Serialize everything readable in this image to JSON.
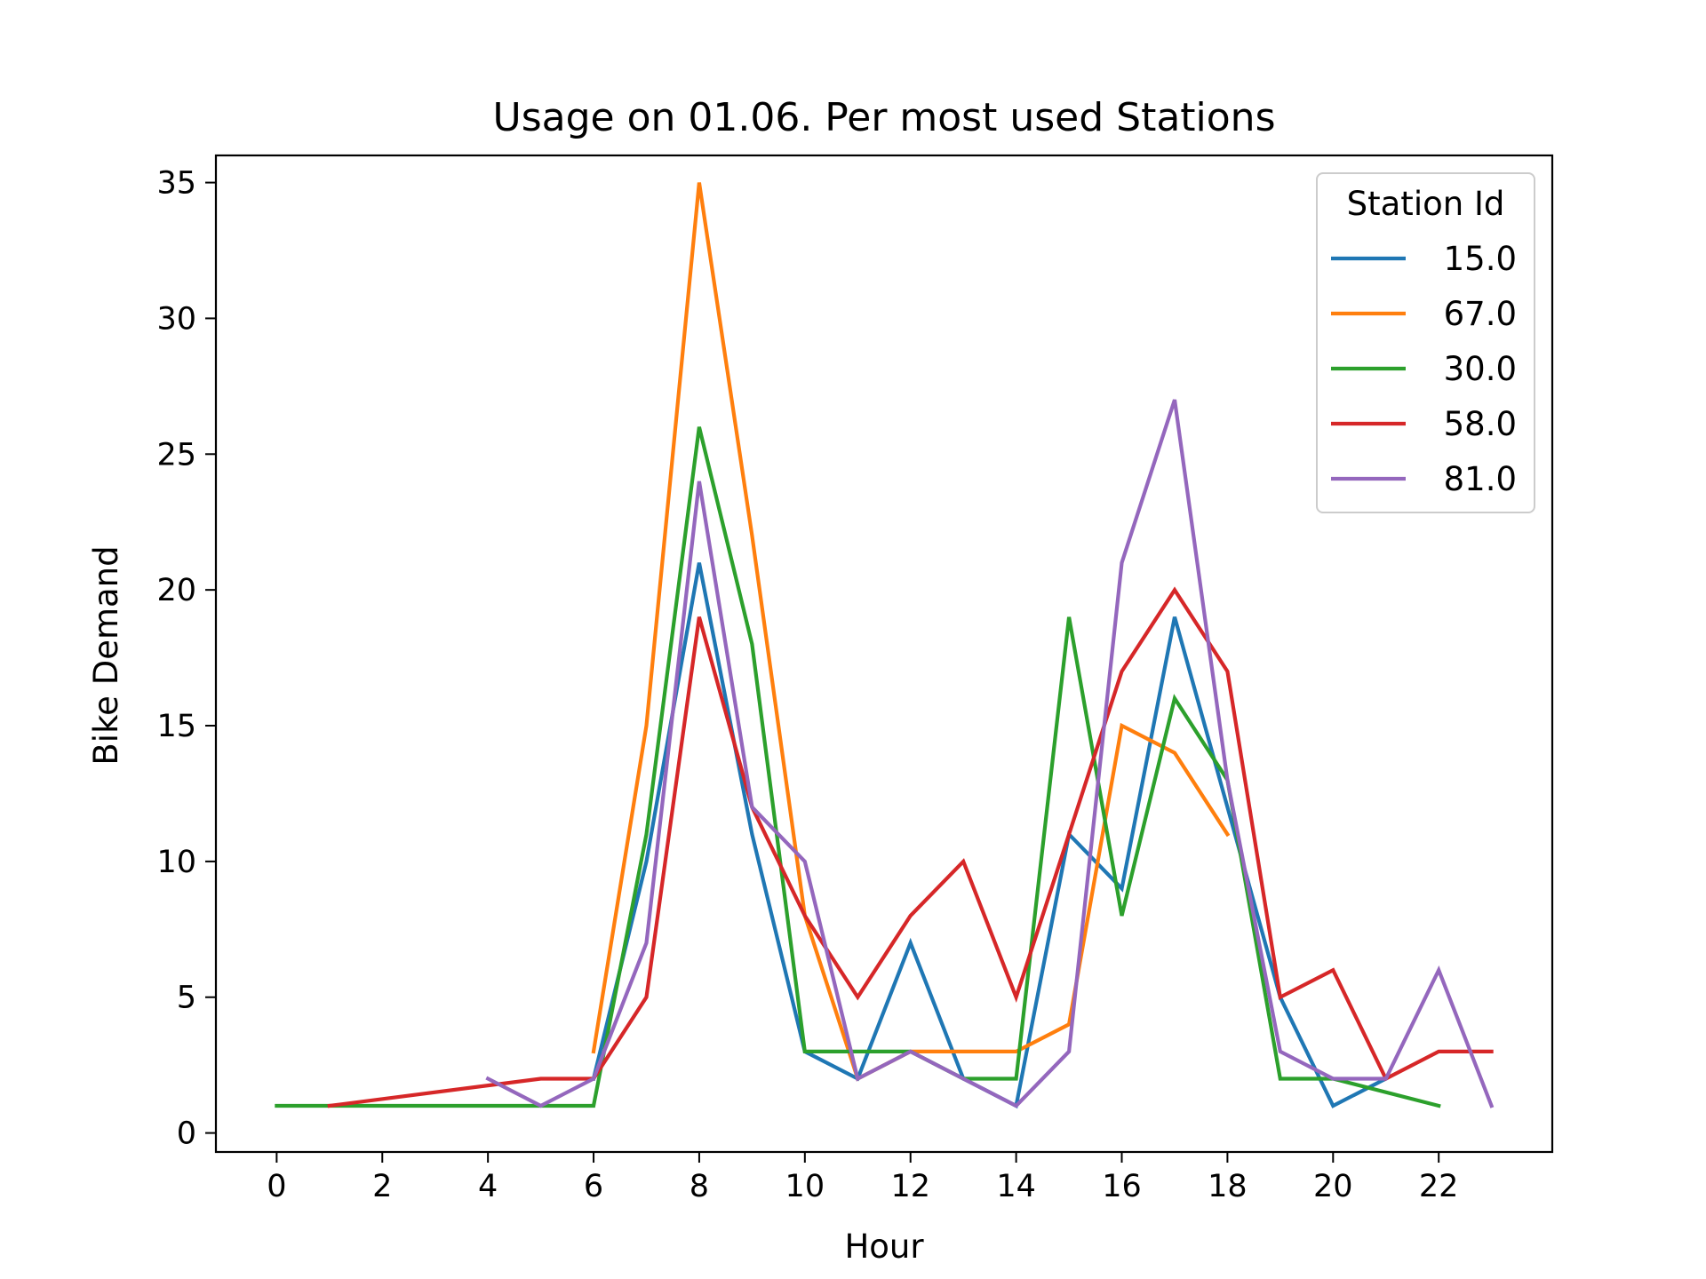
{
  "chart_data": {
    "type": "line",
    "title": "Usage on 01.06. Per most used Stations",
    "xlabel": "Hour",
    "ylabel": "Bike Demand",
    "xlim": [
      -1.15,
      24.15
    ],
    "ylim": [
      -0.7,
      36.0
    ],
    "xticks": [
      0,
      2,
      4,
      6,
      8,
      10,
      12,
      14,
      16,
      18,
      20,
      22
    ],
    "yticks": [
      0,
      5,
      10,
      15,
      20,
      25,
      30,
      35
    ],
    "grid": false,
    "legend": {
      "title": "Station Id",
      "position": "top-right"
    },
    "series": [
      {
        "name": "15.0",
        "color": "#1f77b4",
        "points": [
          [
            6,
            2
          ],
          [
            7,
            10
          ],
          [
            8,
            21
          ],
          [
            9,
            11
          ],
          [
            10,
            3
          ],
          [
            11,
            2
          ],
          [
            12,
            7
          ],
          [
            13,
            2
          ],
          [
            14,
            1
          ],
          [
            15,
            11
          ],
          [
            16,
            9
          ],
          [
            17,
            19
          ],
          [
            18,
            12
          ],
          [
            19,
            5
          ],
          [
            20,
            1
          ],
          [
            21,
            2
          ]
        ]
      },
      {
        "name": "67.0",
        "color": "#ff7f0e",
        "points": [
          [
            6,
            3
          ],
          [
            7,
            15
          ],
          [
            8,
            35
          ],
          [
            9,
            22
          ],
          [
            10,
            8
          ],
          [
            11,
            2
          ],
          [
            12,
            3
          ],
          [
            13,
            3
          ],
          [
            14,
            3
          ],
          [
            15,
            4
          ],
          [
            16,
            15
          ],
          [
            17,
            14
          ],
          [
            18,
            11
          ]
        ]
      },
      {
        "name": "30.0",
        "color": "#2ca02c",
        "points": [
          [
            0,
            1
          ],
          [
            1,
            1
          ],
          [
            2,
            1
          ],
          [
            3,
            1
          ],
          [
            4,
            1
          ],
          [
            5,
            1
          ],
          [
            6,
            1
          ],
          [
            7,
            11
          ],
          [
            8,
            26
          ],
          [
            9,
            18
          ],
          [
            10,
            3
          ],
          [
            11,
            3
          ],
          [
            12,
            3
          ],
          [
            13,
            2
          ],
          [
            14,
            2
          ],
          [
            15,
            19
          ],
          [
            16,
            8
          ],
          [
            17,
            16
          ],
          [
            18,
            13
          ],
          [
            19,
            2
          ],
          [
            20,
            2
          ],
          [
            22,
            1
          ]
        ]
      },
      {
        "name": "58.0",
        "color": "#d62728",
        "points": [
          [
            1,
            1
          ],
          [
            5,
            2
          ],
          [
            6,
            2
          ],
          [
            7,
            5
          ],
          [
            8,
            19
          ],
          [
            9,
            12
          ],
          [
            10,
            8
          ],
          [
            11,
            5
          ],
          [
            12,
            8
          ],
          [
            13,
            10
          ],
          [
            14,
            5
          ],
          [
            15,
            11
          ],
          [
            16,
            17
          ],
          [
            17,
            20
          ],
          [
            18,
            17
          ],
          [
            19,
            5
          ],
          [
            20,
            6
          ],
          [
            21,
            2
          ],
          [
            22,
            3
          ],
          [
            23,
            3
          ]
        ]
      },
      {
        "name": "81.0",
        "color": "#9467bd",
        "points": [
          [
            4,
            2
          ],
          [
            5,
            1
          ],
          [
            6,
            2
          ],
          [
            7,
            7
          ],
          [
            8,
            24
          ],
          [
            9,
            12
          ],
          [
            10,
            10
          ],
          [
            11,
            2
          ],
          [
            12,
            3
          ],
          [
            13,
            2
          ],
          [
            14,
            1
          ],
          [
            15,
            3
          ],
          [
            16,
            21
          ],
          [
            17,
            27
          ],
          [
            18,
            13
          ],
          [
            19,
            3
          ],
          [
            20,
            2
          ],
          [
            21,
            2
          ],
          [
            22,
            6
          ],
          [
            23,
            1
          ]
        ]
      }
    ]
  }
}
